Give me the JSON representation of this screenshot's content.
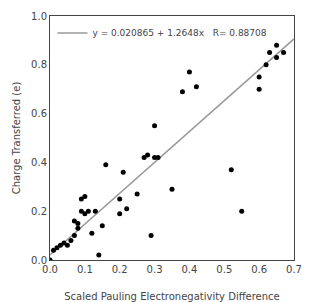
{
  "chart_data": {
    "type": "scatter",
    "xlabel": "Scaled Pauling Electronegativity Difference",
    "ylabel": "Charge Transferred (e)",
    "series": [
      {
        "name": "y = 0.020865 + 1.2648x   R= 0.88708",
        "type": "line",
        "color": "#999999",
        "x": [
          0,
          0.7
        ],
        "values": [
          0.020865,
          0.906225
        ]
      },
      {
        "type": "scatter",
        "color": "#000000",
        "x": [
          0.0,
          0.01,
          0.02,
          0.03,
          0.04,
          0.05,
          0.06,
          0.07,
          0.07,
          0.08,
          0.08,
          0.09,
          0.09,
          0.1,
          0.1,
          0.11,
          0.12,
          0.13,
          0.14,
          0.15,
          0.16,
          0.2,
          0.2,
          0.21,
          0.22,
          0.25,
          0.27,
          0.28,
          0.29,
          0.3,
          0.3,
          0.31,
          0.35,
          0.38,
          0.4,
          0.42,
          0.52,
          0.55,
          0.6,
          0.6,
          0.62,
          0.63,
          0.65,
          0.65,
          0.67
        ],
        "values": [
          0.0,
          0.04,
          0.05,
          0.06,
          0.07,
          0.06,
          0.08,
          0.1,
          0.16,
          0.13,
          0.15,
          0.2,
          0.25,
          0.19,
          0.26,
          0.2,
          0.11,
          0.2,
          0.02,
          0.14,
          0.39,
          0.19,
          0.25,
          0.36,
          0.21,
          0.27,
          0.42,
          0.43,
          0.1,
          0.42,
          0.55,
          0.42,
          0.29,
          0.69,
          0.77,
          0.71,
          0.37,
          0.2,
          0.7,
          0.75,
          0.8,
          0.85,
          0.83,
          0.88,
          0.85
        ]
      }
    ],
    "xlim": [
      0,
      0.7
    ],
    "ylim": [
      0,
      1.0
    ],
    "xticks": [
      {
        "value": 0,
        "label": "0.0"
      },
      0.1,
      0.2,
      0.3,
      0.4,
      0.5,
      0.6,
      0.7
    ],
    "yticks": [
      {
        "value": 0,
        "label": "0.0"
      },
      0.2,
      0.4,
      0.6,
      0.8,
      {
        "value": 1.0,
        "label": "1.0"
      }
    ],
    "legend": "upper left",
    "grid": false
  }
}
